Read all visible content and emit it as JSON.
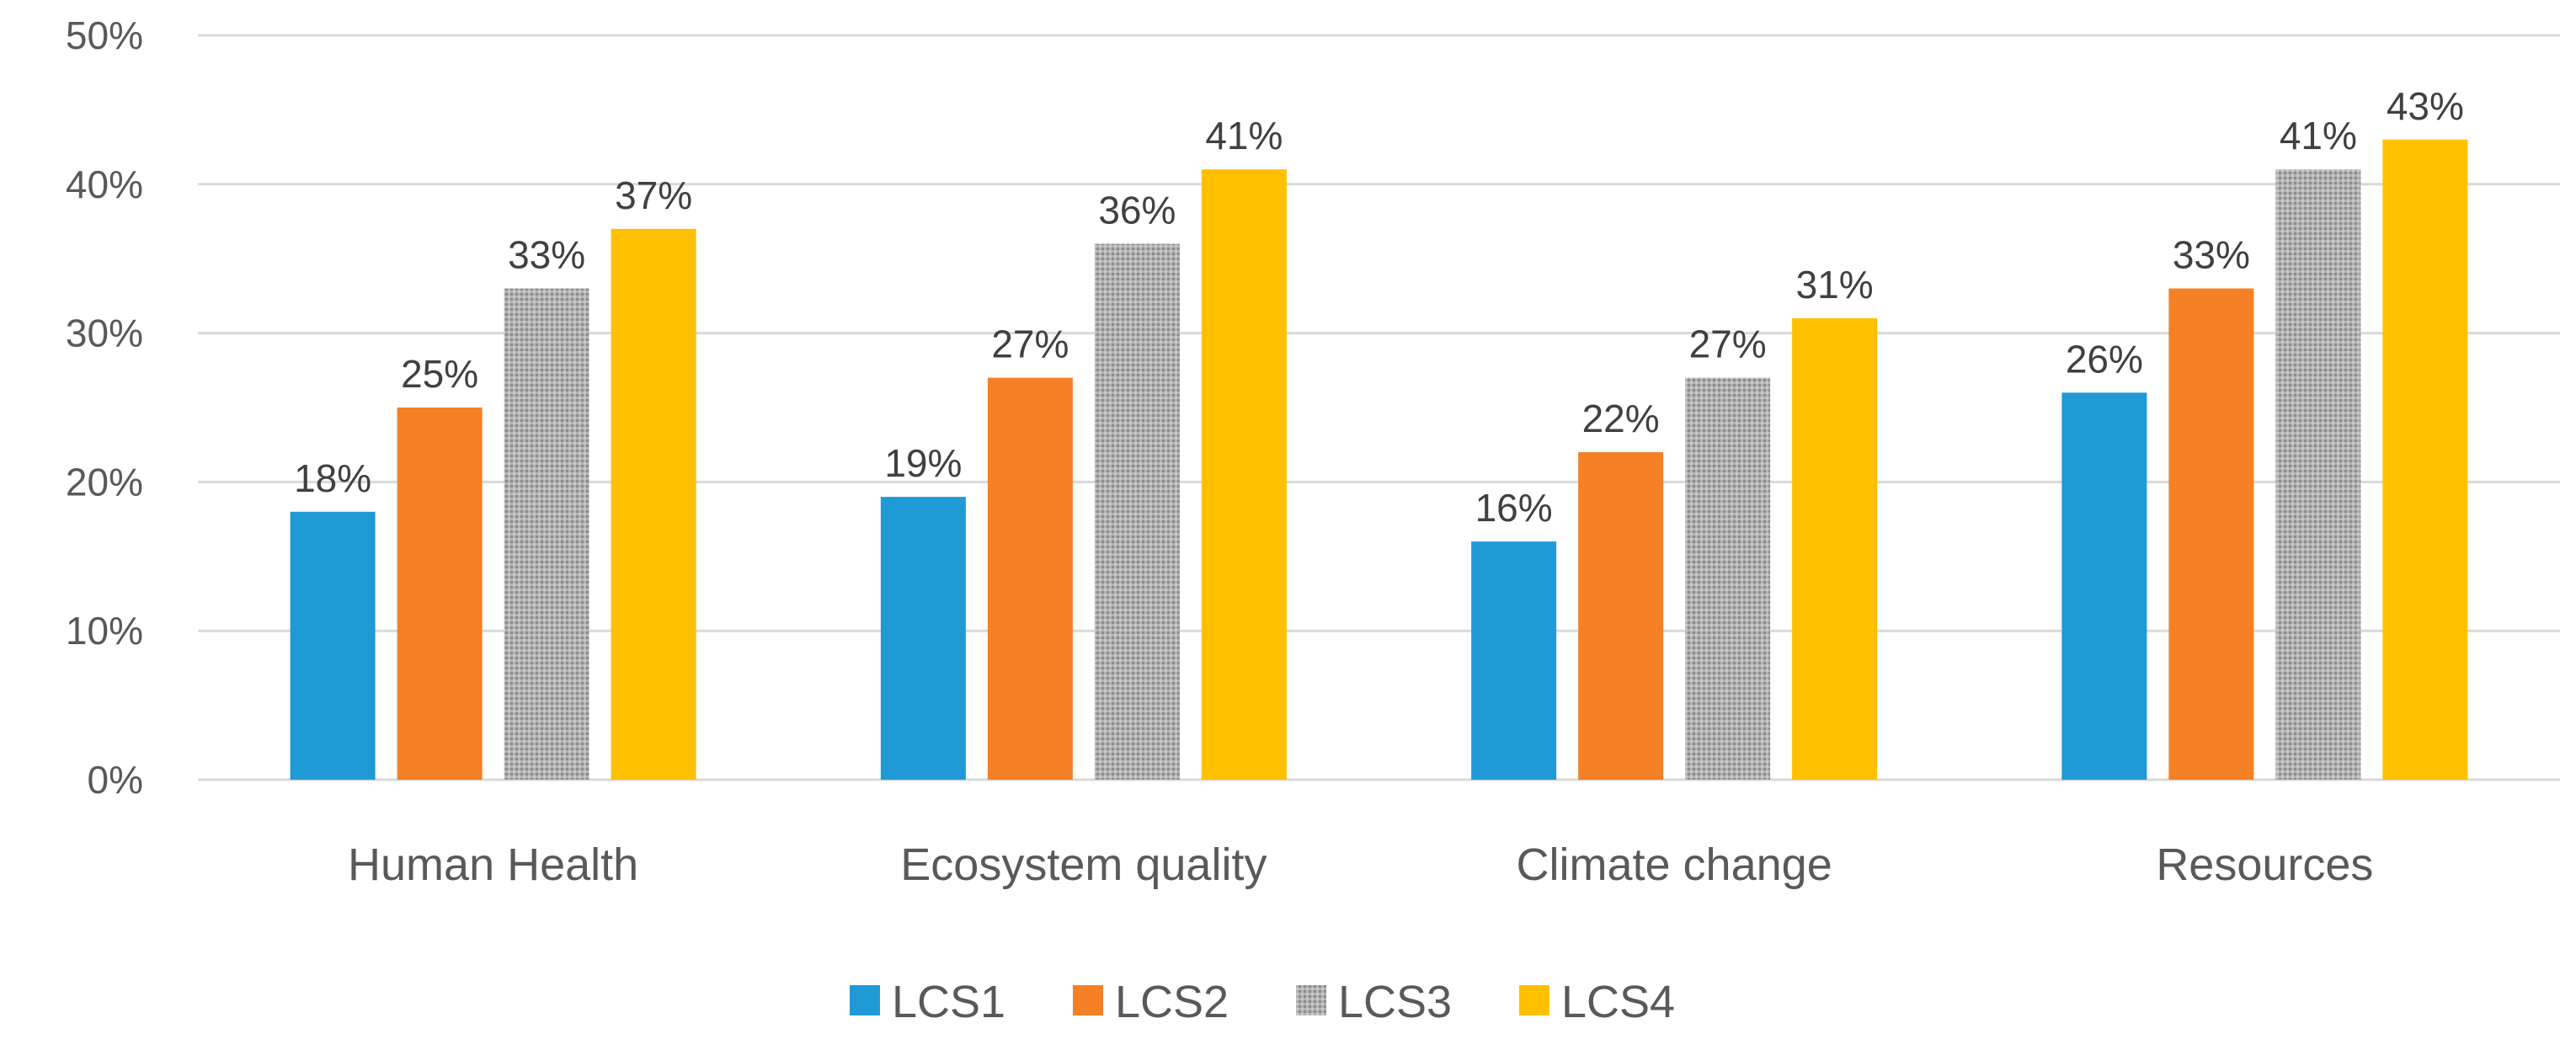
{
  "chart_data": {
    "type": "bar",
    "title": "",
    "xlabel": "",
    "ylabel": "",
    "ylim": [
      0,
      0.5
    ],
    "yticks": [
      {
        "value": 0,
        "label": "0%"
      },
      {
        "value": 0.1,
        "label": "10%"
      },
      {
        "value": 0.2,
        "label": "20%"
      },
      {
        "value": 0.3,
        "label": "30%"
      },
      {
        "value": 0.4,
        "label": "40%"
      },
      {
        "value": 0.5,
        "label": "50%"
      }
    ],
    "grid": true,
    "legend_position": "bottom",
    "categories": [
      "Human Health",
      "Ecosystem quality",
      "Climate change",
      "Resources"
    ],
    "series": [
      {
        "name": "LCS1",
        "color": "#1f9ad6",
        "pattern": "solid",
        "values": [
          0.18,
          0.19,
          0.16,
          0.26
        ],
        "labels": [
          "18%",
          "19%",
          "16%",
          "26%"
        ]
      },
      {
        "name": "LCS2",
        "color": "#f58025",
        "pattern": "solid",
        "values": [
          0.25,
          0.27,
          0.22,
          0.33
        ],
        "labels": [
          "25%",
          "27%",
          "22%",
          "33%"
        ]
      },
      {
        "name": "LCS3",
        "color": "#a6a6a6",
        "pattern": "dotted",
        "values": [
          0.33,
          0.36,
          0.27,
          0.41
        ],
        "labels": [
          "33%",
          "36%",
          "27%",
          "41%"
        ]
      },
      {
        "name": "LCS4",
        "color": "#ffc000",
        "pattern": "solid",
        "values": [
          0.37,
          0.41,
          0.31,
          0.43
        ],
        "labels": [
          "37%",
          "41%",
          "31%",
          "43%"
        ]
      }
    ]
  }
}
